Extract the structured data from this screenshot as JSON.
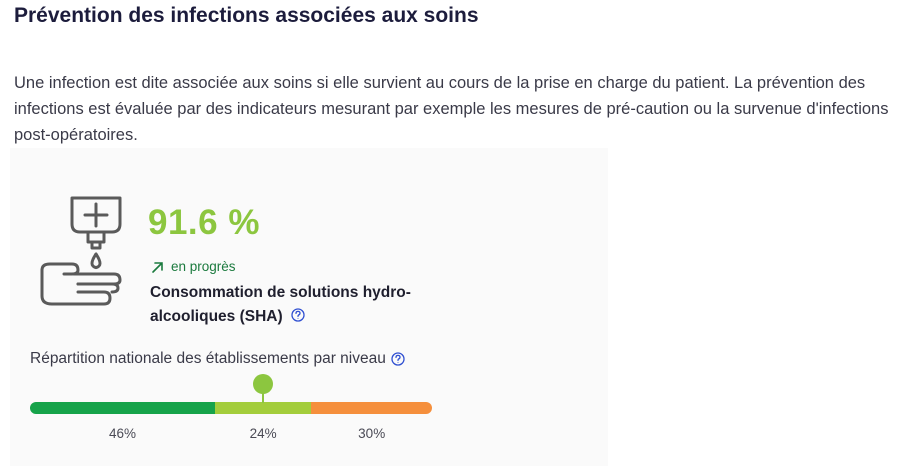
{
  "section": {
    "title": "Prévention des infections associées aux soins",
    "intro": "Une infection est dite associée aux soins si elle survient au cours de la prise en charge du patient. La prévention des infections est évaluée par des indicateurs mesurant par exemple les mesures de pré-caution ou la survenue d'infections post-opératoires."
  },
  "indicator": {
    "icon": "hand-sanitizer-icon",
    "score": "91.6 %",
    "trend_icon": "arrow-up-right-icon",
    "trend_label": "en progrès",
    "label": "Consommation de solutions hydro-alcooliques (SHA)"
  },
  "distribution": {
    "label": "Répartition nationale des établissements par niveau",
    "segments": [
      {
        "percent": "46%",
        "share": 46,
        "color": "#16a34a"
      },
      {
        "percent": "24%",
        "share": 24,
        "color": "#a3cd3b"
      },
      {
        "percent": "30%",
        "share": 30,
        "color": "#f58f3c"
      }
    ],
    "marker_segment": 1,
    "marker_color": "#8cc63f"
  }
}
